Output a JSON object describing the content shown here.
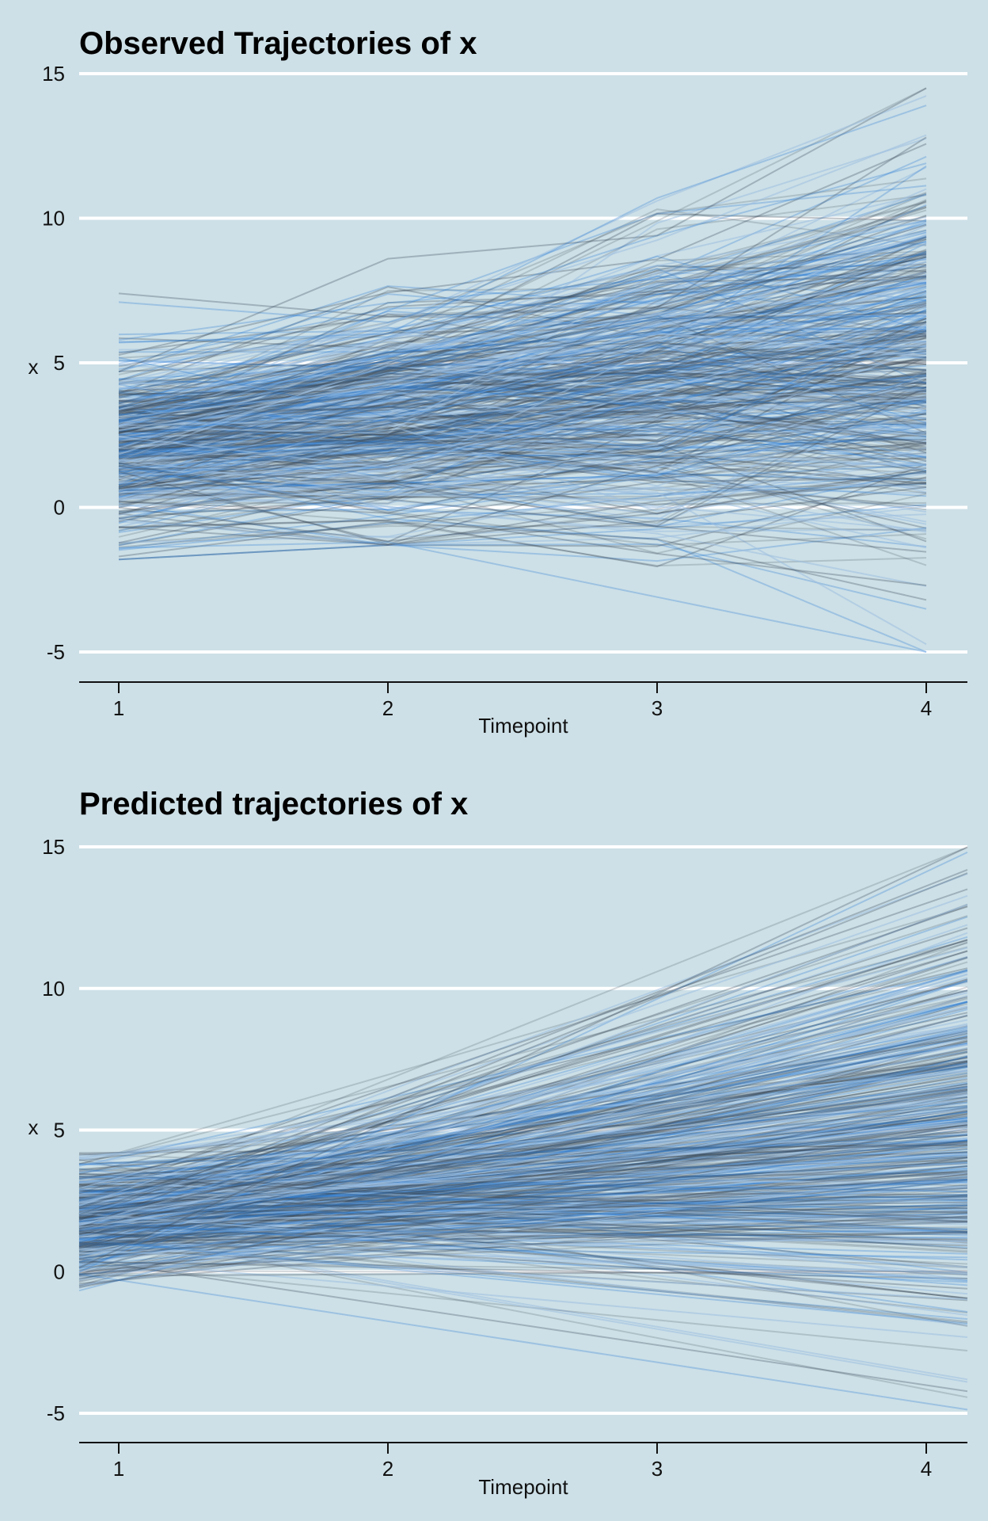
{
  "colors": {
    "background": "#cde0e7",
    "gridline": "#ffffff",
    "line_dark": "#3f4f5c",
    "line_blue": "#2f7fd4",
    "line_light": "#9fc0e0"
  },
  "chart_data": [
    {
      "type": "line",
      "title": "Observed Trajectories of x",
      "xlabel": "Timepoint",
      "ylabel": "x",
      "x": [
        1,
        2,
        3,
        4
      ],
      "xticks": [
        "1",
        "2",
        "3",
        "4"
      ],
      "yticks": [
        "-5",
        "0",
        "5",
        "10",
        "15"
      ],
      "ylim": [
        -6,
        15
      ],
      "grid": "horizontal",
      "legend": "none",
      "n_series": 500,
      "series_summary": {
        "mean": [
          2.0,
          3.0,
          4.0,
          5.2
        ],
        "min": [
          -1.8,
          -1.3,
          -3.0,
          -5.0
        ],
        "max": [
          7.4,
          8.6,
          10.6,
          14.5
        ]
      },
      "series": [
        {
          "values": [
            7.4,
            6.6,
            6.9,
            12.8
          ]
        },
        {
          "values": [
            7.1,
            6.4,
            9.4,
            11.9
          ]
        },
        {
          "values": [
            4.7,
            8.6,
            9.4,
            14.5
          ]
        },
        {
          "values": [
            5.7,
            6.0,
            10.7,
            13.9
          ]
        },
        {
          "values": [
            -1.7,
            -0.5,
            -1.1,
            -3.2
          ]
        },
        {
          "values": [
            -1.4,
            -1.2,
            -3.1,
            -5.0
          ]
        },
        {
          "values": [
            0.2,
            -0.2,
            -1.6,
            -2.7
          ]
        },
        {
          "values": [
            2.5,
            3.5,
            5.0,
            7.5
          ]
        },
        {
          "values": [
            1.5,
            2.2,
            2.5,
            2.0
          ]
        },
        {
          "values": [
            3.2,
            4.1,
            6.3,
            9.2
          ]
        }
      ]
    },
    {
      "type": "line",
      "title": "Predicted trajectories of x",
      "xlabel": "Timepoint",
      "ylabel": "x",
      "x": [
        1,
        2,
        3,
        4
      ],
      "xticks": [
        "1",
        "2",
        "3",
        "4"
      ],
      "yticks": [
        "-5",
        "0",
        "5",
        "10",
        "15"
      ],
      "ylim": [
        -6,
        15
      ],
      "grid": "horizontal",
      "legend": "none",
      "n_series": 500,
      "series_summary": {
        "mean": [
          1.9,
          2.9,
          3.9,
          5.0
        ],
        "min": [
          -0.3,
          -1.1,
          -2.9,
          -4.6
        ],
        "max": [
          4.2,
          7.6,
          10.8,
          14.4
        ]
      },
      "series": [
        {
          "intercept": 0.8,
          "slope": 4.5
        },
        {
          "intercept": -0.3,
          "slope": -1.45
        },
        {
          "intercept": 2.5,
          "slope": 3.3
        },
        {
          "intercept": 1.0,
          "slope": -0.9
        }
      ]
    }
  ]
}
